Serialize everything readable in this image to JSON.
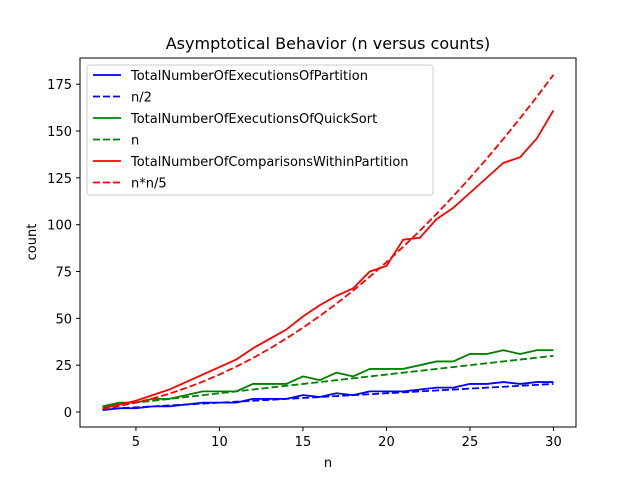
{
  "chart_data": {
    "type": "line",
    "title": "Asymptotical Behavior (n versus counts)",
    "xlabel": "n",
    "ylabel": "count",
    "xlim": [
      1.65,
      31.35
    ],
    "ylim": [
      -8,
      189
    ],
    "xticks": [
      5,
      10,
      15,
      20,
      25,
      30
    ],
    "yticks": [
      0,
      25,
      50,
      75,
      100,
      125,
      150,
      175
    ],
    "grid": false,
    "legend_position": "upper-left",
    "x": [
      3,
      4,
      5,
      6,
      7,
      8,
      9,
      10,
      11,
      12,
      13,
      14,
      15,
      16,
      17,
      18,
      19,
      20,
      21,
      22,
      23,
      24,
      25,
      26,
      27,
      28,
      29,
      30
    ],
    "series": [
      {
        "name": "TotalNumberOfExecutionsOfPartition",
        "color": "#0000ff",
        "style": "solid",
        "values": [
          1,
          2,
          2,
          3,
          3,
          4,
          5,
          5,
          5,
          7,
          7,
          7,
          9,
          8,
          10,
          9,
          11,
          11,
          11,
          12,
          13,
          13,
          15,
          15,
          16,
          15,
          16,
          16
        ]
      },
      {
        "name": "n/2",
        "color": "#0000ff",
        "style": "dashed",
        "values": [
          1.5,
          2,
          2.5,
          3,
          3.5,
          4,
          4.5,
          5,
          5.5,
          6,
          6.5,
          7,
          7.5,
          8,
          8.5,
          9,
          9.5,
          10,
          10.5,
          11,
          11.5,
          12,
          12.5,
          13,
          13.5,
          14,
          14.5,
          15
        ]
      },
      {
        "name": "TotalNumberOfExecutionsOfQuickSort",
        "color": "#008000",
        "style": "solid",
        "values": [
          3,
          5,
          5,
          7,
          7,
          9,
          11,
          11,
          11,
          15,
          15,
          15,
          19,
          17,
          21,
          19,
          23,
          23,
          23,
          25,
          27,
          27,
          31,
          31,
          33,
          31,
          33,
          33
        ]
      },
      {
        "name": "n",
        "color": "#008000",
        "style": "dashed",
        "values": [
          3,
          4,
          5,
          6,
          7,
          8,
          9,
          10,
          11,
          12,
          13,
          14,
          15,
          16,
          17,
          18,
          19,
          20,
          21,
          22,
          23,
          24,
          25,
          26,
          27,
          28,
          29,
          30
        ]
      },
      {
        "name": "TotalNumberOfComparisonsWithinPartition",
        "color": "#ff0000",
        "style": "solid",
        "values": [
          2,
          4,
          6,
          9,
          12,
          16,
          20,
          24,
          28,
          34,
          39,
          44,
          51,
          57,
          62,
          66,
          75,
          78,
          92,
          93,
          103,
          109,
          117,
          125,
          133,
          136,
          146,
          161
        ]
      },
      {
        "name": "n*n/5",
        "color": "#ff0000",
        "style": "dashed",
        "values": [
          1.8,
          3.2,
          5,
          7.2,
          9.8,
          12.8,
          16.2,
          20,
          24.2,
          28.8,
          33.8,
          39.2,
          45,
          51.2,
          57.8,
          64.8,
          72.2,
          80,
          88.2,
          96.8,
          105.8,
          115.2,
          125,
          135.2,
          145.8,
          156.8,
          168.2,
          180
        ]
      }
    ]
  }
}
